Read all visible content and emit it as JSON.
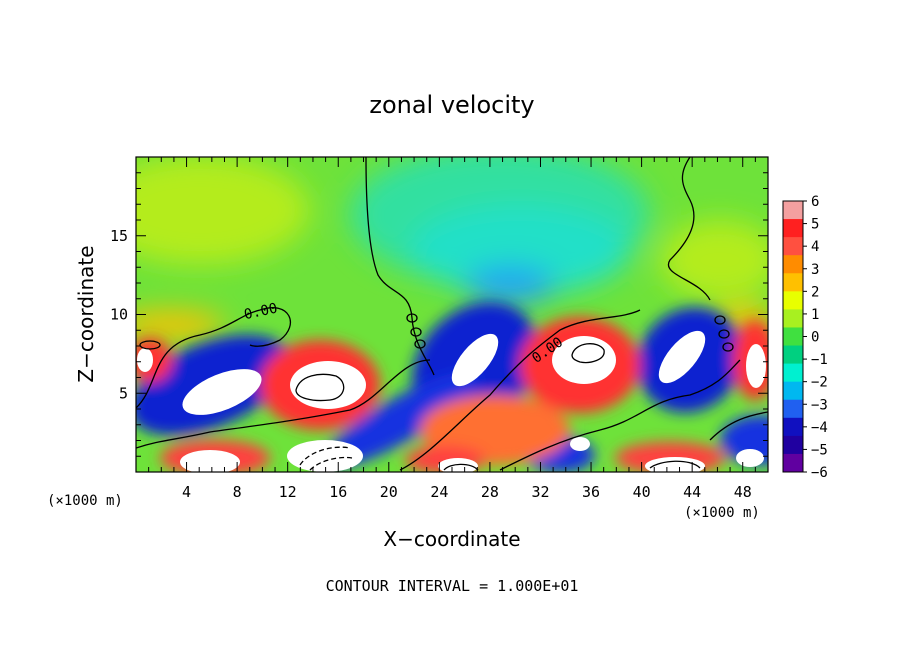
{
  "chart_data": {
    "type": "heatmap",
    "title": "zonal velocity",
    "xlabel": "X−coordinate",
    "ylabel": "Z−coordinate",
    "x_unit_left": "(×1000 m)",
    "x_unit_right": "(×1000 m)",
    "xlim": [
      0,
      50
    ],
    "ylim": [
      0,
      20
    ],
    "x_ticks": [
      4,
      8,
      12,
      16,
      20,
      24,
      28,
      32,
      36,
      40,
      44,
      48
    ],
    "y_ticks": [
      5,
      10,
      15
    ],
    "colorbar": {
      "ticks": [
        "6",
        "5",
        "4",
        "3",
        "2",
        "1",
        "0",
        "−1",
        "−2",
        "−3",
        "−4",
        "−5",
        "−6"
      ],
      "range": [
        -6,
        6
      ],
      "colors": [
        "#f4a0a0",
        "#ff2020",
        "#ff5040",
        "#ff8c00",
        "#ffc000",
        "#e8ff00",
        "#a8f020",
        "#40e040",
        "#00d080",
        "#00f0d0",
        "#00b8f0",
        "#2060f0",
        "#1010c0",
        "#2000a0",
        "#6000a0"
      ]
    },
    "contour_label": "0.00",
    "footer": "CONTOUR INTERVAL = 1.000E+01"
  }
}
